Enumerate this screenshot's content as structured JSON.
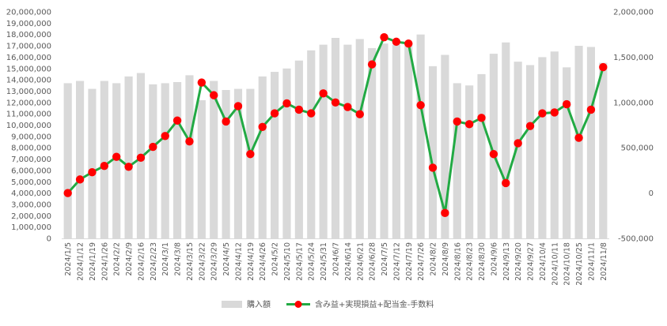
{
  "chart_data": {
    "type": "bar+line",
    "title": "",
    "xlabel": "",
    "ylabel": "",
    "y2label": "",
    "categories": [
      "2024/1/5",
      "2024/1/12",
      "2024/1/19",
      "2024/1/26",
      "2024/2/2",
      "2024/2/9",
      "2024/2/16",
      "2024/2/23",
      "2024/3/1",
      "2024/3/8",
      "2024/3/15",
      "2024/3/22",
      "2024/3/29",
      "2024/4/5",
      "2024/4/12",
      "2024/4/19",
      "2024/4/26",
      "2024/5/2",
      "2024/5/10",
      "2024/5/17",
      "2024/5/24",
      "2024/5/31",
      "2024/6/7",
      "2024/6/14",
      "2024/6/21",
      "2024/6/28",
      "2024/7/5",
      "2024/7/12",
      "2024/7/19",
      "2024/7/26",
      "2024/8/2",
      "2024/8/9",
      "2024/8/16",
      "2024/8/23",
      "2024/8/30",
      "2024/9/6",
      "2024/9/13",
      "2024/9/20",
      "2024/9/27",
      "2024/10/4",
      "2024/10/11",
      "2024/10/18",
      "2024/10/25",
      "2024/11/1",
      "2024/11/8"
    ],
    "series": [
      {
        "name": "購入額",
        "type": "bar",
        "axis": "left",
        "color": "#d9d9d9",
        "values": [
          13700000,
          13900000,
          13200000,
          13900000,
          13700000,
          14300000,
          14600000,
          13600000,
          13700000,
          13800000,
          14400000,
          12200000,
          13900000,
          13100000,
          13200000,
          13200000,
          14300000,
          14700000,
          15000000,
          15700000,
          16600000,
          17100000,
          17700000,
          17100000,
          17600000,
          16800000,
          17200000,
          17100000,
          17300000,
          18000000,
          15200000,
          16200000,
          13700000,
          13500000,
          14500000,
          16300000,
          17300000,
          15600000,
          15300000,
          16000000,
          16500000,
          15100000,
          17000000,
          16900000,
          15500000
        ]
      },
      {
        "name": "含み益+実現損益+配当金-手数料",
        "type": "line",
        "axis": "right",
        "color": "#22aa44",
        "marker_color": "#ff0000",
        "values": [
          0,
          150000,
          230000,
          300000,
          400000,
          290000,
          390000,
          510000,
          630000,
          800000,
          570000,
          1220000,
          1080000,
          790000,
          960000,
          430000,
          730000,
          880000,
          990000,
          920000,
          880000,
          1100000,
          1000000,
          950000,
          870000,
          1420000,
          1720000,
          1670000,
          1650000,
          970000,
          280000,
          -220000,
          790000,
          760000,
          830000,
          430000,
          110000,
          550000,
          740000,
          880000,
          890000,
          980000,
          610000,
          920000,
          1390000
        ]
      }
    ],
    "y_left": {
      "min": 0,
      "max": 20000000,
      "step": 1000000,
      "tick_labels": [
        "0",
        "1,000,000",
        "2,000,000",
        "3,000,000",
        "4,000,000",
        "5,000,000",
        "6,000,000",
        "7,000,000",
        "8,000,000",
        "9,000,000",
        "10,000,000",
        "11,000,000",
        "12,000,000",
        "13,000,000",
        "14,000,000",
        "15,000,000",
        "16,000,000",
        "17,000,000",
        "18,000,000",
        "19,000,000",
        "20,000,000"
      ]
    },
    "y_right": {
      "min": -500000,
      "max": 2000000,
      "step": 500000,
      "tick_labels": [
        "-500,000",
        "0",
        "500,000",
        "1,000,000",
        "1,500,000",
        "2,000,000"
      ]
    },
    "grid": false,
    "legend_position": "bottom"
  }
}
